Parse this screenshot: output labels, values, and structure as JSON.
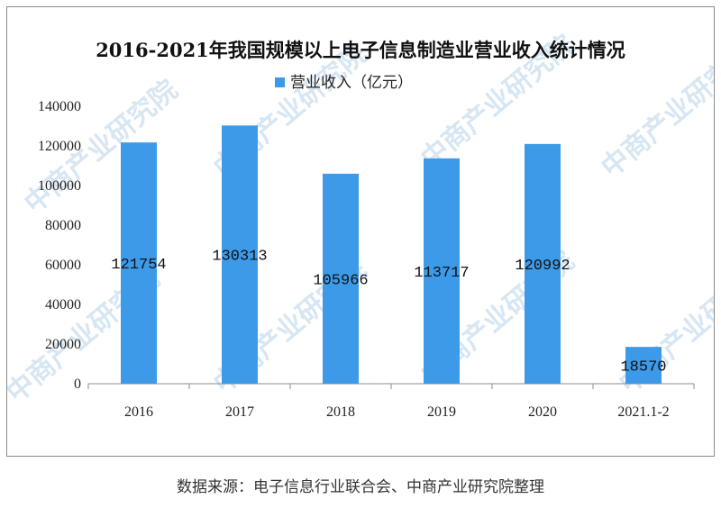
{
  "chart_data": {
    "type": "bar",
    "title": "2016-2021年我国规模以上电子信息制造业营业收入统计情况",
    "categories": [
      "2016",
      "2017",
      "2018",
      "2019",
      "2020",
      "2021.1-2"
    ],
    "series": [
      {
        "name": "营业收入（亿元）",
        "values": [
          121754,
          130313,
          105966,
          113717,
          120992,
          18570
        ]
      }
    ],
    "data_labels": [
      "121754",
      "130313",
      "105966",
      "113717",
      "120992",
      "18570"
    ],
    "y_ticks": [
      "0",
      "20000",
      "40000",
      "60000",
      "80000",
      "100000",
      "120000",
      "140000"
    ],
    "ylim": [
      0,
      140000
    ],
    "xlabel": "",
    "ylabel": "",
    "grid": false,
    "legend_position": "top",
    "bar_color": "#3d9ae8"
  },
  "watermark": "中商产业研究院",
  "source_note": "数据来源：电子信息行业联合会、中商产业研究院整理"
}
